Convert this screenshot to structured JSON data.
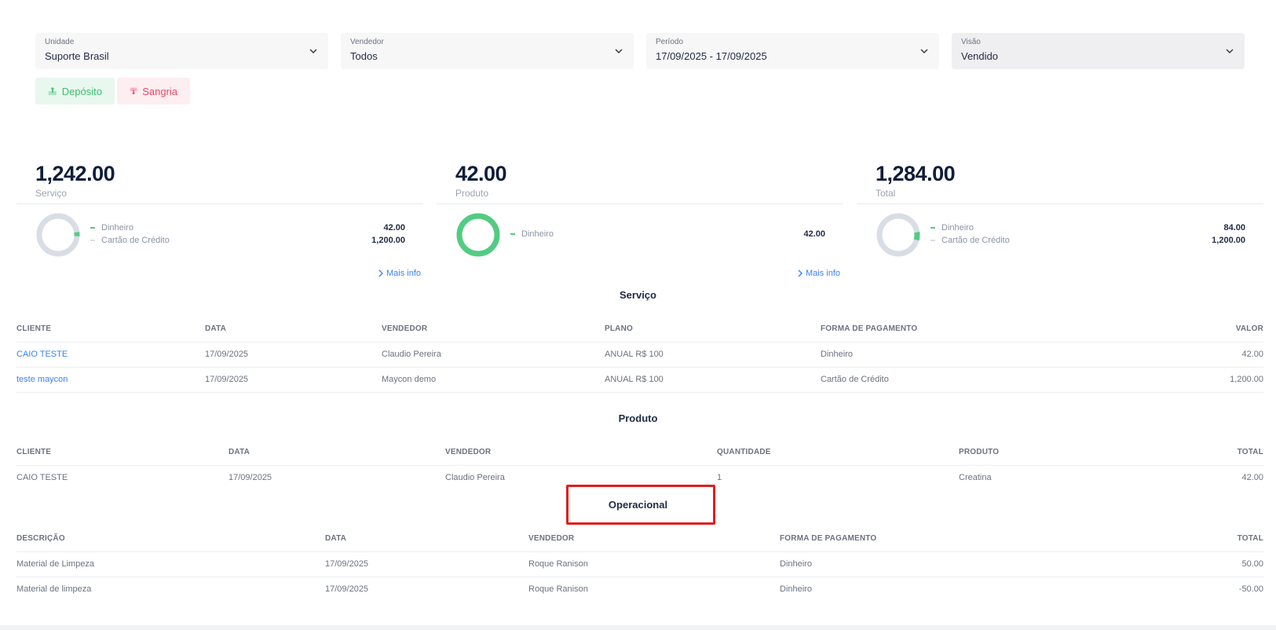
{
  "filters": [
    {
      "label": "Unidade",
      "value": "Suporte Brasil"
    },
    {
      "label": "Vendedor",
      "value": "Todos"
    },
    {
      "label": "Período",
      "value": "17/09/2025 - 17/09/2025"
    },
    {
      "label": "Visão",
      "value": "Vendido"
    }
  ],
  "actions": {
    "deposit": "Depósito",
    "withdraw": "Sangria"
  },
  "cards": [
    {
      "amount": "1,242.00",
      "label": "Serviço",
      "legend": [
        {
          "name": "Dinheiro",
          "value": "42.00"
        },
        {
          "name": "Cartão de Crédito",
          "value": "1,200.00"
        }
      ],
      "share_dinheiro": 0.034,
      "more": "Mais info"
    },
    {
      "amount": "42.00",
      "label": "Produto",
      "legend": [
        {
          "name": "Dinheiro",
          "value": "42.00"
        }
      ],
      "share_dinheiro": 1.0,
      "more": "Mais info"
    },
    {
      "amount": "1,284.00",
      "label": "Total",
      "legend": [
        {
          "name": "Dinheiro",
          "value": "84.00"
        },
        {
          "name": "Cartão de Crédito",
          "value": "1,200.00"
        }
      ],
      "share_dinheiro": 0.065
    }
  ],
  "colors": {
    "dinheiro": "#52cc82",
    "cartao": "#d9dde5",
    "link": "#3b82f6",
    "highlight": "#e11d1d"
  },
  "servico": {
    "title": "Serviço",
    "headers": [
      "CLIENTE",
      "DATA",
      "VENDEDOR",
      "PLANO",
      "FORMA DE PAGAMENTO",
      "VALOR"
    ],
    "rows": [
      [
        "CAIO TESTE",
        "17/09/2025",
        "Claudio Pereira",
        "ANUAL R$ 100",
        "Dinheiro",
        "42.00"
      ],
      [
        "teste maycon",
        "17/09/2025",
        "Maycon demo",
        "ANUAL R$ 100",
        "Cartão de Crédito",
        "1,200.00"
      ]
    ]
  },
  "produto": {
    "title": "Produto",
    "headers": [
      "CLIENTE",
      "DATA",
      "VENDEDOR",
      "QUANTIDADE",
      "PRODUTO",
      "TOTAL"
    ],
    "rows": [
      [
        "CAIO TESTE",
        "17/09/2025",
        "Claudio Pereira",
        "1",
        "Creatina",
        "42.00"
      ]
    ]
  },
  "operacional": {
    "title": "Operacional",
    "headers": [
      "DESCRIÇÃO",
      "DATA",
      "VENDEDOR",
      "FORMA DE PAGAMENTO",
      "TOTAL"
    ],
    "rows": [
      [
        "Material de Limpeza",
        "17/09/2025",
        "Roque Ranison",
        "Dinheiro",
        "50.00"
      ],
      [
        "Material de limpeza",
        "17/09/2025",
        "Roque Ranison",
        "Dinheiro",
        "-50.00"
      ]
    ]
  }
}
